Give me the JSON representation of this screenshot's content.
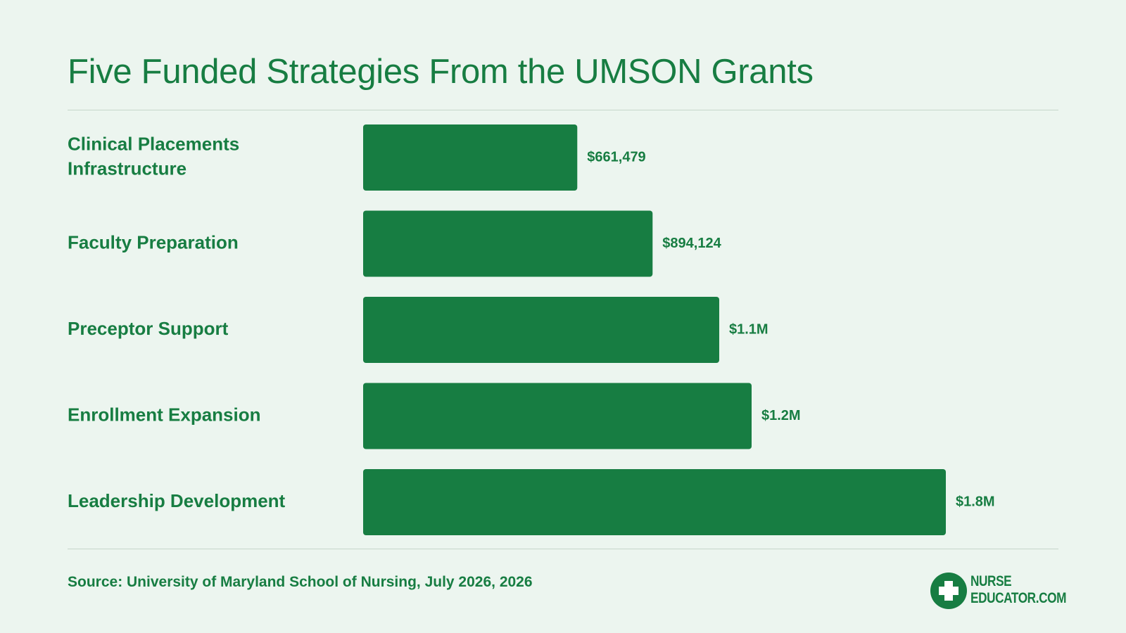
{
  "title": "Five Funded Strategies From the UMSON Grants",
  "source": "Source: University of Maryland School of Nursing, July 2026, 2026",
  "logo": {
    "line1": "NURSE",
    "line2": "EDUCATOR.COM",
    "icon": "cross-icon"
  },
  "colors": {
    "bar": "#177d42",
    "text": "#177d42",
    "background": "#ecf5ef",
    "rule": "#c6d6cb"
  },
  "chart_data": {
    "type": "bar",
    "orientation": "horizontal",
    "title": "Five Funded Strategies From the UMSON Grants",
    "categories": [
      [
        "Clinical Placements",
        "Infrastructure"
      ],
      [
        "Faculty Preparation"
      ],
      [
        "Preceptor Support"
      ],
      [
        "Enrollment Expansion"
      ],
      [
        "Leadership Development"
      ]
    ],
    "values": [
      661479,
      894124,
      1100000,
      1200000,
      1800000
    ],
    "value_labels": [
      "$661,479",
      "$894,124",
      "$1.1M",
      "$1.2M",
      "$1.8M"
    ],
    "xlabel": "",
    "ylabel": "",
    "xlim": [
      0,
      1800000
    ],
    "grid": false,
    "legend": "none"
  }
}
